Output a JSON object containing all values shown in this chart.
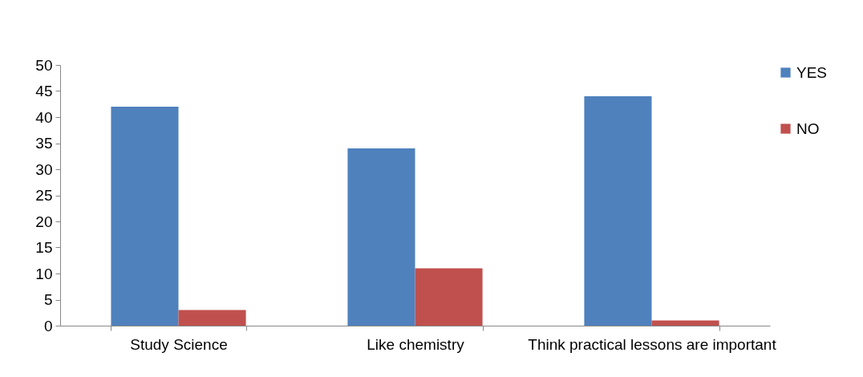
{
  "chart_data": {
    "type": "bar",
    "categories": [
      "Study Science",
      "Like chemistry",
      "Think practical lessons are important"
    ],
    "series": [
      {
        "name": "YES",
        "color": "#4f81bd",
        "values": [
          42,
          34,
          44
        ]
      },
      {
        "name": "NO",
        "color": "#c0504d",
        "values": [
          3,
          11,
          1
        ]
      }
    ],
    "ylim": [
      0,
      50
    ],
    "yticks": [
      0,
      5,
      10,
      15,
      20,
      25,
      30,
      35,
      40,
      45,
      50
    ],
    "grid": false,
    "legend": "right"
  }
}
